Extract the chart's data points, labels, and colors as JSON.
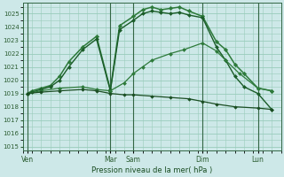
{
  "xlabel": "Pression niveau de la mer( hPa )",
  "bg_color": "#cde8e8",
  "grid_color": "#99ccbb",
  "ylim": [
    1015,
    1025.5
  ],
  "yticks": [
    1015,
    1016,
    1017,
    1018,
    1019,
    1020,
    1021,
    1022,
    1023,
    1024,
    1025
  ],
  "xlim": [
    0,
    28
  ],
  "day_labels": [
    "Ven",
    "Mar",
    "Sam",
    "Dim",
    "Lun"
  ],
  "day_positions": [
    0.5,
    9.5,
    12.0,
    19.5,
    25.5
  ],
  "vline_positions": [
    0.5,
    9.5,
    12.0,
    19.5,
    25.5
  ],
  "series": [
    {
      "x": [
        0.5,
        1.0,
        2.0,
        3.0,
        4.0,
        5.0,
        6.5,
        8.0,
        9.5,
        10.5,
        12.0,
        13.0,
        14.0,
        15.0,
        16.0,
        17.0,
        18.0,
        19.5,
        21.0,
        22.0,
        23.0,
        24.0,
        25.5,
        27.0
      ],
      "y": [
        1019.0,
        1019.2,
        1019.4,
        1019.6,
        1020.3,
        1021.4,
        1022.5,
        1023.3,
        1019.3,
        1024.1,
        1024.8,
        1025.3,
        1025.5,
        1025.3,
        1025.4,
        1025.5,
        1025.2,
        1024.8,
        1022.9,
        1022.3,
        1021.2,
        1020.5,
        1019.4,
        1019.2
      ],
      "color": "#2d7a3a",
      "linewidth": 1.1,
      "marker": "D",
      "markersize": 2.2
    },
    {
      "x": [
        0.5,
        1.0,
        2.0,
        3.0,
        4.0,
        5.0,
        6.5,
        8.0,
        9.5,
        10.5,
        12.0,
        13.0,
        14.0,
        15.0,
        16.0,
        17.0,
        18.0,
        19.5,
        21.0,
        22.0,
        23.0,
        24.0,
        25.5,
        27.0
      ],
      "y": [
        1019.0,
        1019.1,
        1019.3,
        1019.5,
        1020.0,
        1021.0,
        1022.3,
        1023.1,
        1019.2,
        1023.8,
        1024.5,
        1025.0,
        1025.2,
        1025.1,
        1025.0,
        1025.1,
        1024.9,
        1024.7,
        1022.5,
        1021.5,
        1020.3,
        1019.5,
        1019.0,
        1017.8
      ],
      "color": "#1a5c28",
      "linewidth": 1.0,
      "marker": "D",
      "markersize": 2.0
    },
    {
      "x": [
        0.5,
        2.0,
        4.0,
        6.5,
        8.0,
        9.5,
        11.0,
        12.0,
        13.0,
        14.0,
        16.0,
        17.5,
        19.5,
        21.0,
        22.0,
        23.5,
        25.5,
        27.0
      ],
      "y": [
        1019.0,
        1019.2,
        1019.4,
        1019.5,
        1019.3,
        1019.2,
        1019.8,
        1020.5,
        1021.0,
        1021.5,
        1022.0,
        1022.3,
        1022.8,
        1022.2,
        1021.5,
        1020.5,
        1019.4,
        1019.2
      ],
      "color": "#2d7a3a",
      "linewidth": 0.9,
      "marker": "D",
      "markersize": 2.0
    },
    {
      "x": [
        0.5,
        2.0,
        4.0,
        6.5,
        8.0,
        9.5,
        11.0,
        12.0,
        14.0,
        16.0,
        18.0,
        19.5,
        21.0,
        23.0,
        25.5,
        27.0
      ],
      "y": [
        1019.0,
        1019.1,
        1019.2,
        1019.3,
        1019.2,
        1019.0,
        1018.9,
        1018.9,
        1018.8,
        1018.7,
        1018.6,
        1018.4,
        1018.2,
        1018.0,
        1017.9,
        1017.8
      ],
      "color": "#1a4d22",
      "linewidth": 0.9,
      "marker": "D",
      "markersize": 1.8
    }
  ]
}
